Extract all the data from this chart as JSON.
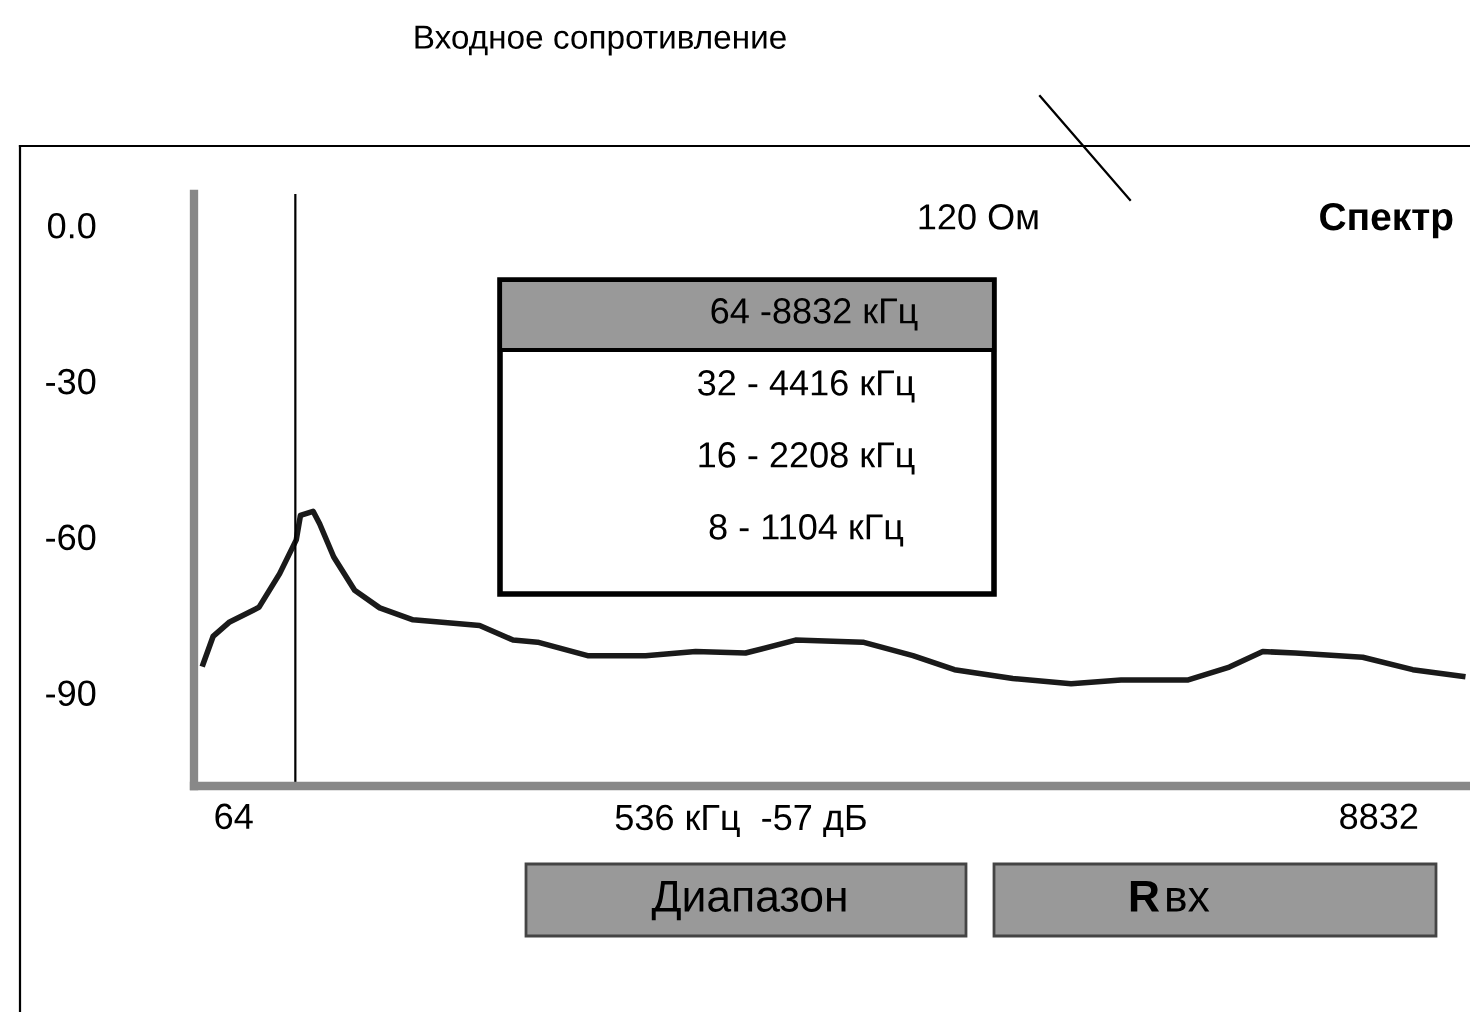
{
  "chart_data": {
    "type": "line",
    "title": "Спектр",
    "x": [
      -170,
      -94,
      33,
      257,
      416,
      543,
      575,
      672,
      722,
      830,
      990,
      1182,
      1437,
      1947,
      2203,
      2391,
      2774,
      3218,
      3601,
      3983,
      4366,
      4882,
      5265,
      5583,
      6030,
      6476,
      6858,
      7367,
      7688,
      7944,
      8194,
      8709,
      9092,
      9475
    ],
    "series": [
      {
        "color": "#1a1a1a",
        "values": [
          -84.5,
          -79.2,
          -76.4,
          -73.6,
          -67.1,
          -60.6,
          -55.9,
          -55.1,
          -57.5,
          -63.9,
          -70.3,
          -73.7,
          -76.0,
          -77.1,
          -79.9,
          -80.3,
          -82.9,
          -82.9,
          -82.1,
          -82.4,
          -79.9,
          -80.3,
          -82.9,
          -85.6,
          -87.3,
          -88.3,
          -87.6,
          -87.6,
          -85.1,
          -82.1,
          -82.4,
          -83.2,
          -85.6,
          -86.9
        ]
      }
    ],
    "xlim": [
      -240,
      9500
    ],
    "xticks": [
      64,
      8832
    ],
    "ylim": [
      -108,
      6
    ],
    "yticks": [
      {
        "value": 0,
        "label": "0.0"
      },
      -30,
      -60,
      -90
    ],
    "ref_lines": [
      {
        "axis": "x",
        "value": 536,
        "label": "536 кГц  -57 дБ",
        "color": "#000000"
      }
    ],
    "grid": false,
    "marker": "none",
    "line_style": "solid",
    "annotations": [
      "Входное сопротивление",
      "120 Ом",
      "64 -8832 кГц",
      "32 - 4416 кГц",
      "16 - 2208 кГц",
      "8 - 1104 кГц",
      "Диапазон",
      "R вх"
    ]
  }
}
